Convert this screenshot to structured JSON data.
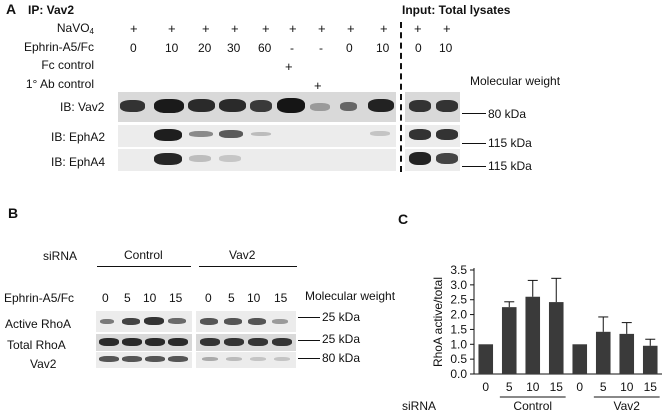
{
  "panel_a": {
    "label": "A",
    "ip_title": "IP: Vav2",
    "input_title": "Input: Total lysates",
    "rows": [
      {
        "label": "NaVO",
        "values": [
          "+",
          "+",
          "+",
          "+",
          "+",
          "+",
          "+",
          "+",
          "+"
        ]
      },
      {
        "label": "Ephrin-A5/Fc",
        "values": [
          "0",
          "10",
          "20",
          "30",
          "60",
          "-",
          "-",
          "0",
          "10"
        ]
      },
      {
        "label": "Fc control",
        "values": [
          "+"
        ]
      },
      {
        "label": "1° Ab control",
        "values": [
          "+"
        ]
      }
    ],
    "navo_subscript": "4",
    "input_rows": [
      [
        "+",
        "+"
      ],
      [
        "0",
        "10"
      ]
    ],
    "molecular_weight_title": "Molecular weight",
    "blots": [
      {
        "label": "IB: Vav2",
        "mw": "80 kDa"
      },
      {
        "label": "IB: EphA2",
        "mw": "115 kDa"
      },
      {
        "label": "IB: EphA4",
        "mw": "115 kDa"
      }
    ]
  },
  "panel_b": {
    "label": "B",
    "sirna_label": "siRNA",
    "groups": [
      "Control",
      "Vav2"
    ],
    "ephrin_label": "Ephrin-A5/Fc",
    "doses": [
      "0",
      "5",
      "10",
      "15",
      "0",
      "5",
      "10",
      "15"
    ],
    "molecular_weight_title": "Molecular weight",
    "blots": [
      {
        "label": "Active RhoA",
        "mw": "25 kDa"
      },
      {
        "label": "Total RhoA",
        "mw": "25 kDa"
      },
      {
        "label": "Vav2",
        "mw": "80 kDa"
      }
    ]
  },
  "panel_c": {
    "label": "C",
    "chart_data": {
      "type": "bar",
      "ylabel": "RhoA active/total",
      "ylim": [
        0,
        3.5
      ],
      "yticks": [
        "0.0",
        "0.5",
        "1.0",
        "1.5",
        "2.0",
        "2.5",
        "3.0",
        "3.5"
      ],
      "categories": [
        "0",
        "5",
        "10",
        "15",
        "0",
        "5",
        "10",
        "15"
      ],
      "values": [
        1.0,
        2.25,
        2.6,
        2.42,
        1.0,
        1.42,
        1.35,
        0.95
      ],
      "errors": [
        0,
        0.18,
        0.55,
        0.8,
        0,
        0.5,
        0.38,
        0.22
      ],
      "xgroup_label": "siRNA",
      "groups": [
        {
          "name": "Control",
          "span": [
            1,
            3
          ]
        },
        {
          "name": "Vav2",
          "span": [
            5,
            7
          ]
        }
      ],
      "bar_color": "#3a3a3a"
    }
  }
}
